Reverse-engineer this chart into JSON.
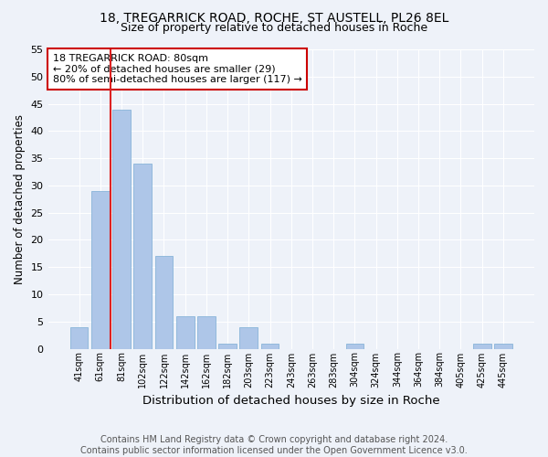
{
  "title1": "18, TREGARRICK ROAD, ROCHE, ST AUSTELL, PL26 8EL",
  "title2": "Size of property relative to detached houses in Roche",
  "xlabel": "Distribution of detached houses by size in Roche",
  "ylabel": "Number of detached properties",
  "categories": [
    "41sqm",
    "61sqm",
    "81sqm",
    "102sqm",
    "122sqm",
    "142sqm",
    "162sqm",
    "182sqm",
    "203sqm",
    "223sqm",
    "243sqm",
    "263sqm",
    "283sqm",
    "304sqm",
    "324sqm",
    "344sqm",
    "364sqm",
    "384sqm",
    "405sqm",
    "425sqm",
    "445sqm"
  ],
  "values": [
    4,
    29,
    44,
    34,
    17,
    6,
    6,
    1,
    4,
    1,
    0,
    0,
    0,
    1,
    0,
    0,
    0,
    0,
    0,
    1,
    1
  ],
  "bar_color": "#aec6e8",
  "bar_edge_color": "#7aadd4",
  "vline_x_idx": 2,
  "vline_color": "#dd2222",
  "annotation_text": "18 TREGARRICK ROAD: 80sqm\n← 20% of detached houses are smaller (29)\n80% of semi-detached houses are larger (117) →",
  "annotation_box_color": "white",
  "annotation_box_edge": "#cc0000",
  "ylim": [
    0,
    55
  ],
  "yticks": [
    0,
    5,
    10,
    15,
    20,
    25,
    30,
    35,
    40,
    45,
    50,
    55
  ],
  "background_color": "#eef2f9",
  "footer": "Contains HM Land Registry data © Crown copyright and database right 2024.\nContains public sector information licensed under the Open Government Licence v3.0.",
  "title1_fontsize": 10,
  "title2_fontsize": 9,
  "xlabel_fontsize": 9.5,
  "ylabel_fontsize": 8.5,
  "footer_fontsize": 7,
  "annotation_fontsize": 8
}
